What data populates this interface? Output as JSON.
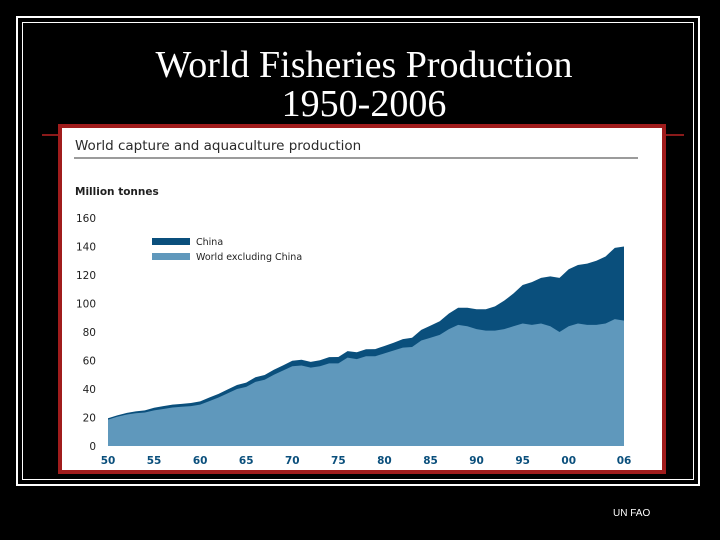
{
  "slide": {
    "title_line1": "World Fisheries Production",
    "title_line2": "1950-2006",
    "source": "UN FAO"
  },
  "colors": {
    "background": "#000000",
    "china": "#0a4f7c",
    "world_excluding_china": "#5f98bc",
    "chart_border": "#a01c1c",
    "tick_labels": "#0a4f7c"
  },
  "chart_data": {
    "type": "area",
    "stacked": true,
    "title": "World capture and aquaculture production",
    "ylabel": "Million tonnes",
    "xlabel": "",
    "ylim": [
      0,
      160
    ],
    "xlim": [
      1950,
      2006
    ],
    "y_ticks": [
      0,
      20,
      40,
      60,
      80,
      100,
      120,
      140,
      160
    ],
    "y_tick_labels": [
      "0",
      "20",
      "40",
      "60",
      "80",
      "100",
      "120",
      "140",
      "160"
    ],
    "x_ticks": [
      1950,
      1955,
      1960,
      1965,
      1970,
      1975,
      1980,
      1985,
      1990,
      1995,
      2000,
      2006
    ],
    "x_tick_labels": [
      "50",
      "55",
      "60",
      "65",
      "70",
      "75",
      "80",
      "85",
      "90",
      "95",
      "00",
      "06"
    ],
    "grid": false,
    "legend_position": "top-left",
    "x": [
      1950,
      1951,
      1952,
      1953,
      1954,
      1955,
      1956,
      1957,
      1958,
      1959,
      1960,
      1961,
      1962,
      1963,
      1964,
      1965,
      1966,
      1967,
      1968,
      1969,
      1970,
      1971,
      1972,
      1973,
      1974,
      1975,
      1976,
      1977,
      1978,
      1979,
      1980,
      1981,
      1982,
      1983,
      1984,
      1985,
      1986,
      1987,
      1988,
      1989,
      1990,
      1991,
      1992,
      1993,
      1994,
      1995,
      1996,
      1997,
      1998,
      1999,
      2000,
      2001,
      2002,
      2003,
      2004,
      2005,
      2006
    ],
    "series": [
      {
        "name": "World excluding China",
        "values": [
          18.5,
          20.5,
          22,
          23,
          23.5,
          25,
          26,
          27,
          27.5,
          28,
          29,
          31.5,
          34,
          37,
          40,
          41.5,
          45,
          46.5,
          50,
          53,
          56,
          56.5,
          55,
          56,
          58,
          58,
          62,
          61,
          63,
          63,
          65,
          67,
          69,
          69.5,
          74,
          76,
          78,
          82,
          85,
          84,
          82,
          81,
          81,
          82,
          84,
          86,
          85,
          86,
          84,
          80,
          84,
          86,
          85,
          85,
          86,
          89,
          88
        ]
      },
      {
        "name": "China",
        "values": [
          1,
          1,
          1.2,
          1.3,
          1.5,
          1.8,
          2,
          2,
          2.1,
          2.2,
          2.3,
          2.5,
          2.6,
          2.7,
          2.8,
          3,
          3.2,
          3.3,
          3.5,
          3.6,
          3.8,
          4,
          4,
          4.2,
          4.4,
          4.5,
          4.6,
          4.8,
          4.9,
          5,
          5.2,
          5.5,
          6,
          6.5,
          7.5,
          8.5,
          9.5,
          11,
          12,
          13,
          14,
          15,
          17,
          20,
          23,
          27,
          30,
          32,
          35,
          38,
          40,
          41,
          43,
          45,
          47,
          50,
          52
        ]
      }
    ]
  }
}
